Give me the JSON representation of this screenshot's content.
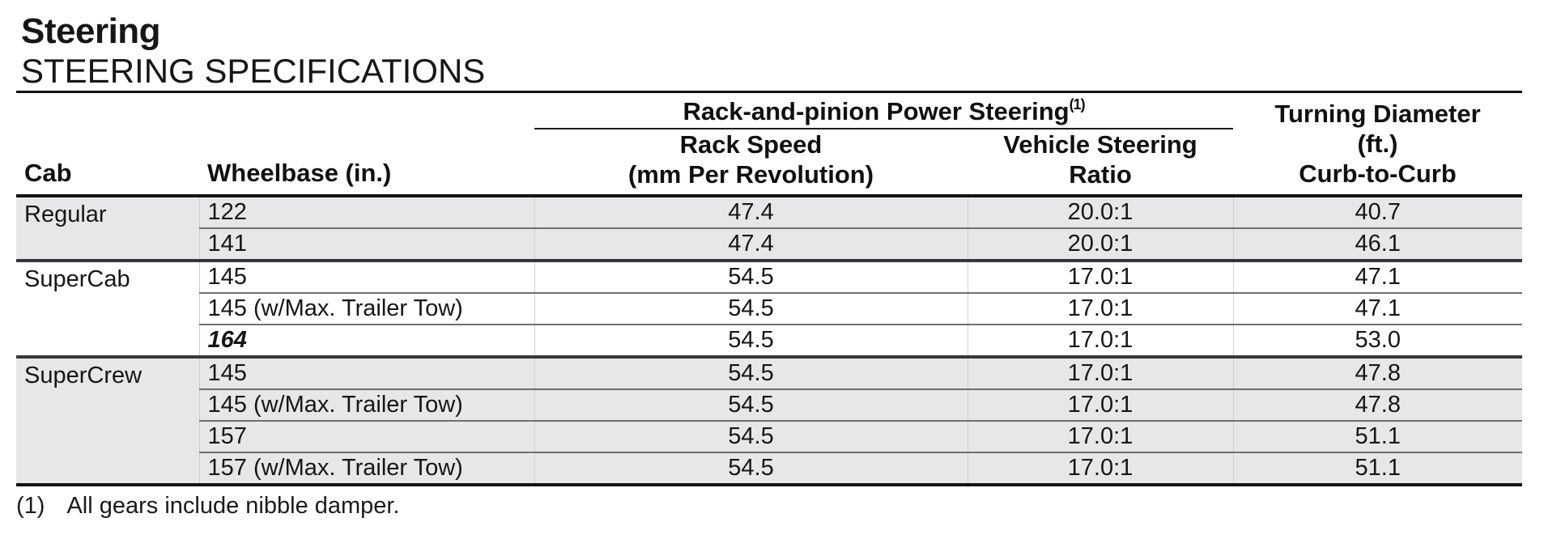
{
  "titles": {
    "section": "Steering",
    "table": "STEERING SPECIFICATIONS"
  },
  "headers": {
    "group": "Rack-and-pinion Power Steering",
    "group_note_ref": "(1)",
    "cab": "Cab",
    "wheelbase": "Wheelbase (in.)",
    "rack_speed_line1": "Rack Speed",
    "rack_speed_line2": "(mm Per Revolution)",
    "ratio_line1": "Vehicle Steering",
    "ratio_line2": "Ratio",
    "turning_line1": "Turning Diameter",
    "turning_line2": "(ft.)",
    "turning_line3": "Curb-to-Curb"
  },
  "table": {
    "rows": [
      {
        "cab": "Regular",
        "wheelbase": "122",
        "rack_speed": "47.4",
        "steering_ratio": "20.0:1",
        "turning_diameter": "40.7"
      },
      {
        "wheelbase": "141",
        "rack_speed": "47.4",
        "steering_ratio": "20.0:1",
        "turning_diameter": "46.1"
      },
      {
        "cab": "SuperCab",
        "wheelbase": "145",
        "rack_speed": "54.5",
        "steering_ratio": "17.0:1",
        "turning_diameter": "47.1"
      },
      {
        "wheelbase": "145 (w/Max. Trailer Tow)",
        "rack_speed": "54.5",
        "steering_ratio": "17.0:1",
        "turning_diameter": "47.1"
      },
      {
        "wheelbase": "164",
        "rack_speed": "54.5",
        "steering_ratio": "17.0:1",
        "turning_diameter": "53.0"
      },
      {
        "cab": "SuperCrew",
        "wheelbase": "145",
        "rack_speed": "54.5",
        "steering_ratio": "17.0:1",
        "turning_diameter": "47.8"
      },
      {
        "wheelbase": "145 (w/Max. Trailer Tow)",
        "rack_speed": "54.5",
        "steering_ratio": "17.0:1",
        "turning_diameter": "47.8"
      },
      {
        "wheelbase": "157",
        "rack_speed": "54.5",
        "steering_ratio": "17.0:1",
        "turning_diameter": "51.1"
      },
      {
        "wheelbase": "157 (w/Max. Trailer Tow)",
        "rack_speed": "54.5",
        "steering_ratio": "17.0:1",
        "turning_diameter": "51.1"
      }
    ]
  },
  "footnote": {
    "marker": "(1)",
    "text": "All gears include nibble damper."
  },
  "colors": {
    "row_shade": "#e7e7e9",
    "rule_dark": "#141414",
    "rule_group": "#38383c",
    "rule_row": "#6f6f74",
    "text": "#161616"
  }
}
